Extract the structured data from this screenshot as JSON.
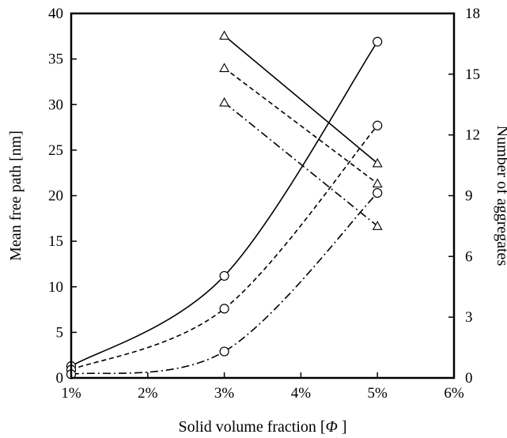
{
  "chart_data": {
    "type": "line",
    "xlabel": "Solid volume fraction [",
    "xlabel_symbol": "Φ",
    "xlabel_suffix": " ]",
    "ylabel_left": "Mean free path [nm]",
    "ylabel_right": "Number of aggregates",
    "x_ticks": [
      "1%",
      "2%",
      "3%",
      "4%",
      "5%",
      "6%"
    ],
    "xlim": [
      1,
      6
    ],
    "ylim_left": [
      0,
      40
    ],
    "ylim_right": [
      0,
      18
    ],
    "y_ticks_left": [
      "0",
      "5",
      "10",
      "15",
      "20",
      "25",
      "30",
      "35",
      "40"
    ],
    "y_ticks_right": [
      "0",
      "3",
      "6",
      "9",
      "12",
      "15",
      "18"
    ],
    "grid": false,
    "series": [
      {
        "axis": "left",
        "marker": "circle",
        "line_style": "solid",
        "x": [
          1,
          3,
          5
        ],
        "y": [
          1.3,
          11.2,
          36.9
        ]
      },
      {
        "axis": "left",
        "marker": "circle",
        "line_style": "dashed",
        "x": [
          1,
          3,
          5
        ],
        "y": [
          0.9,
          7.6,
          27.7
        ]
      },
      {
        "axis": "left",
        "marker": "circle",
        "line_style": "dash-dot",
        "x": [
          1,
          3,
          5
        ],
        "y": [
          0.4,
          2.9,
          20.3
        ]
      },
      {
        "axis": "right",
        "marker": "triangle",
        "line_style": "solid",
        "x": [
          3,
          5
        ],
        "y": [
          16.9,
          10.6
        ]
      },
      {
        "axis": "right",
        "marker": "triangle",
        "line_style": "dashed",
        "x": [
          3,
          5
        ],
        "y": [
          15.3,
          9.6
        ]
      },
      {
        "axis": "right",
        "marker": "triangle",
        "line_style": "dash-dot",
        "x": [
          3,
          5
        ],
        "y": [
          13.6,
          7.5
        ]
      }
    ]
  }
}
